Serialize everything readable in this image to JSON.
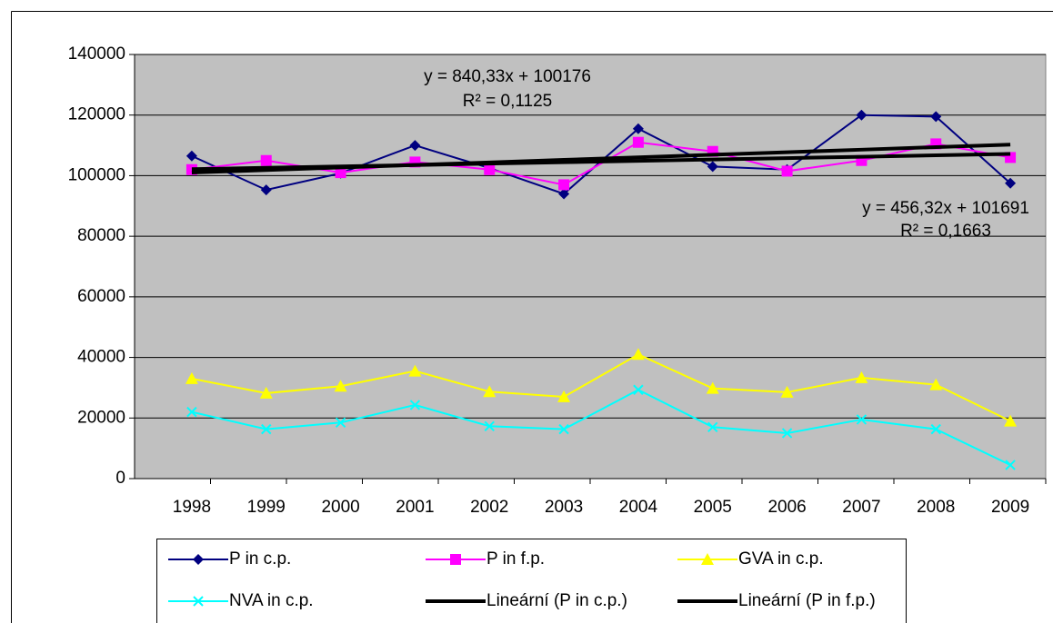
{
  "chart_data": {
    "type": "line",
    "categories": [
      "1998",
      "1999",
      "2000",
      "2001",
      "2002",
      "2003",
      "2004",
      "2005",
      "2006",
      "2007",
      "2008",
      "2009"
    ],
    "series": [
      {
        "name": "P in c.p.",
        "color": "#000080",
        "marker": "diamond",
        "values": [
          106500,
          95300,
          100800,
          110000,
          102500,
          94000,
          115500,
          103000,
          102000,
          120000,
          119500,
          97500
        ]
      },
      {
        "name": "P in f.p.",
        "color": "#ff00ff",
        "marker": "square",
        "values": [
          102000,
          105000,
          101000,
          104500,
          102000,
          97000,
          111000,
          108000,
          101500,
          105000,
          110500,
          106000
        ]
      },
      {
        "name": "GVA in c.p.",
        "color": "#ffff00",
        "marker": "triangle",
        "values": [
          33000,
          28200,
          30500,
          35500,
          28700,
          27000,
          41000,
          29800,
          28500,
          33300,
          31000,
          19000
        ]
      },
      {
        "name": "NVA in c.p.",
        "color": "#00ffff",
        "marker": "x",
        "values": [
          22000,
          16300,
          18500,
          24300,
          17300,
          16300,
          29300,
          17000,
          15000,
          19500,
          16300,
          4500
        ]
      },
      {
        "name": "Lineární (P in c.p.)",
        "color": "#000000",
        "marker": "none",
        "values": [
          101016,
          101857,
          102697,
          103537,
          104378,
          105218,
          106058,
          106899,
          107739,
          108579,
          109420,
          110260
        ]
      },
      {
        "name": "Lineární (P in f.p.)",
        "color": "#000000",
        "marker": "none",
        "values": [
          102147,
          102604,
          103060,
          103516,
          103973,
          104429,
          104885,
          105342,
          105798,
          106254,
          106711,
          107167
        ]
      }
    ],
    "annotations": [
      "y = 840,33x + 100176",
      "R² = 0,1125",
      "y = 456,32x + 101691",
      "R² = 0,1663"
    ],
    "ylim": [
      0,
      140000
    ],
    "yticks": [
      0,
      20000,
      40000,
      60000,
      80000,
      100000,
      120000,
      140000
    ],
    "grid": true,
    "plot_background": "#c0c0c0",
    "legend": "bottom"
  }
}
